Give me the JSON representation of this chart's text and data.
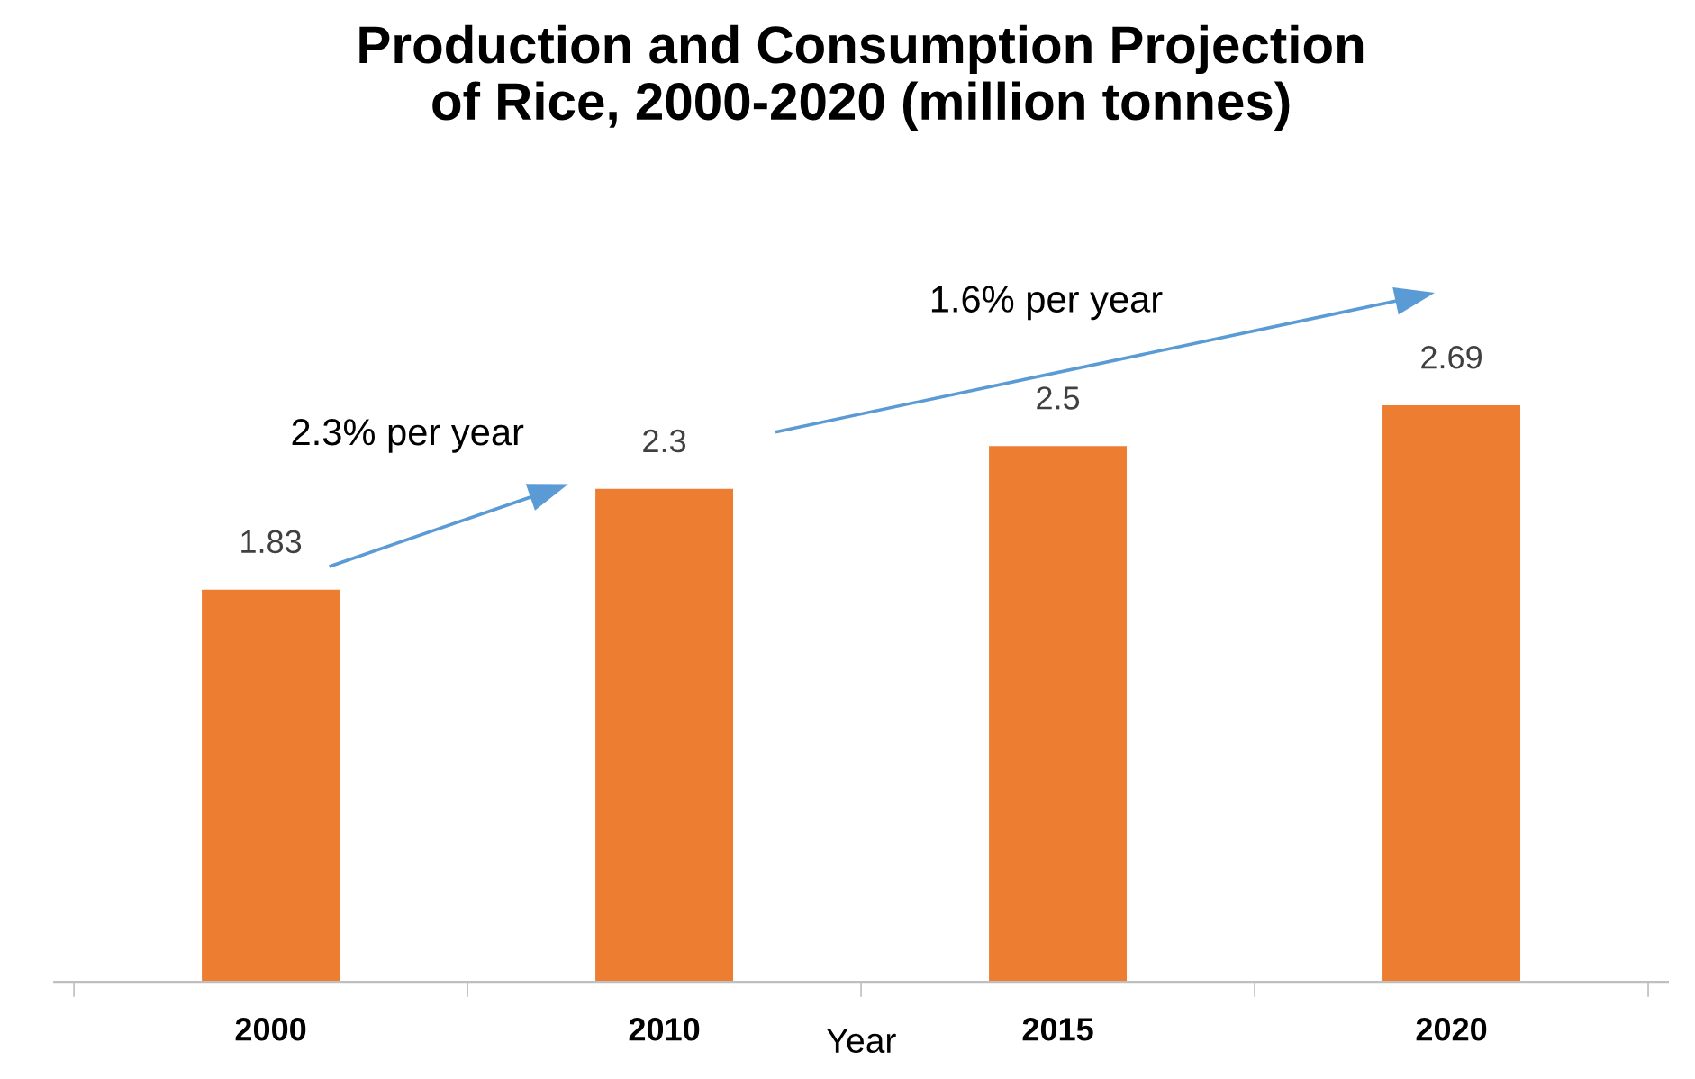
{
  "chart_data": {
    "type": "bar",
    "title": "Production and Consumption Projection\nof Rice, 2000-2020 (million tonnes)",
    "xlabel": "Year",
    "categories": [
      "2000",
      "2010",
      "2015",
      "2020"
    ],
    "values": [
      1.83,
      2.3,
      2.5,
      2.69
    ],
    "color": "#ed7d31",
    "data_labels": true,
    "annotations": [
      "2.3% per year",
      "1.6% per year"
    ],
    "grid": false,
    "legend": false
  }
}
